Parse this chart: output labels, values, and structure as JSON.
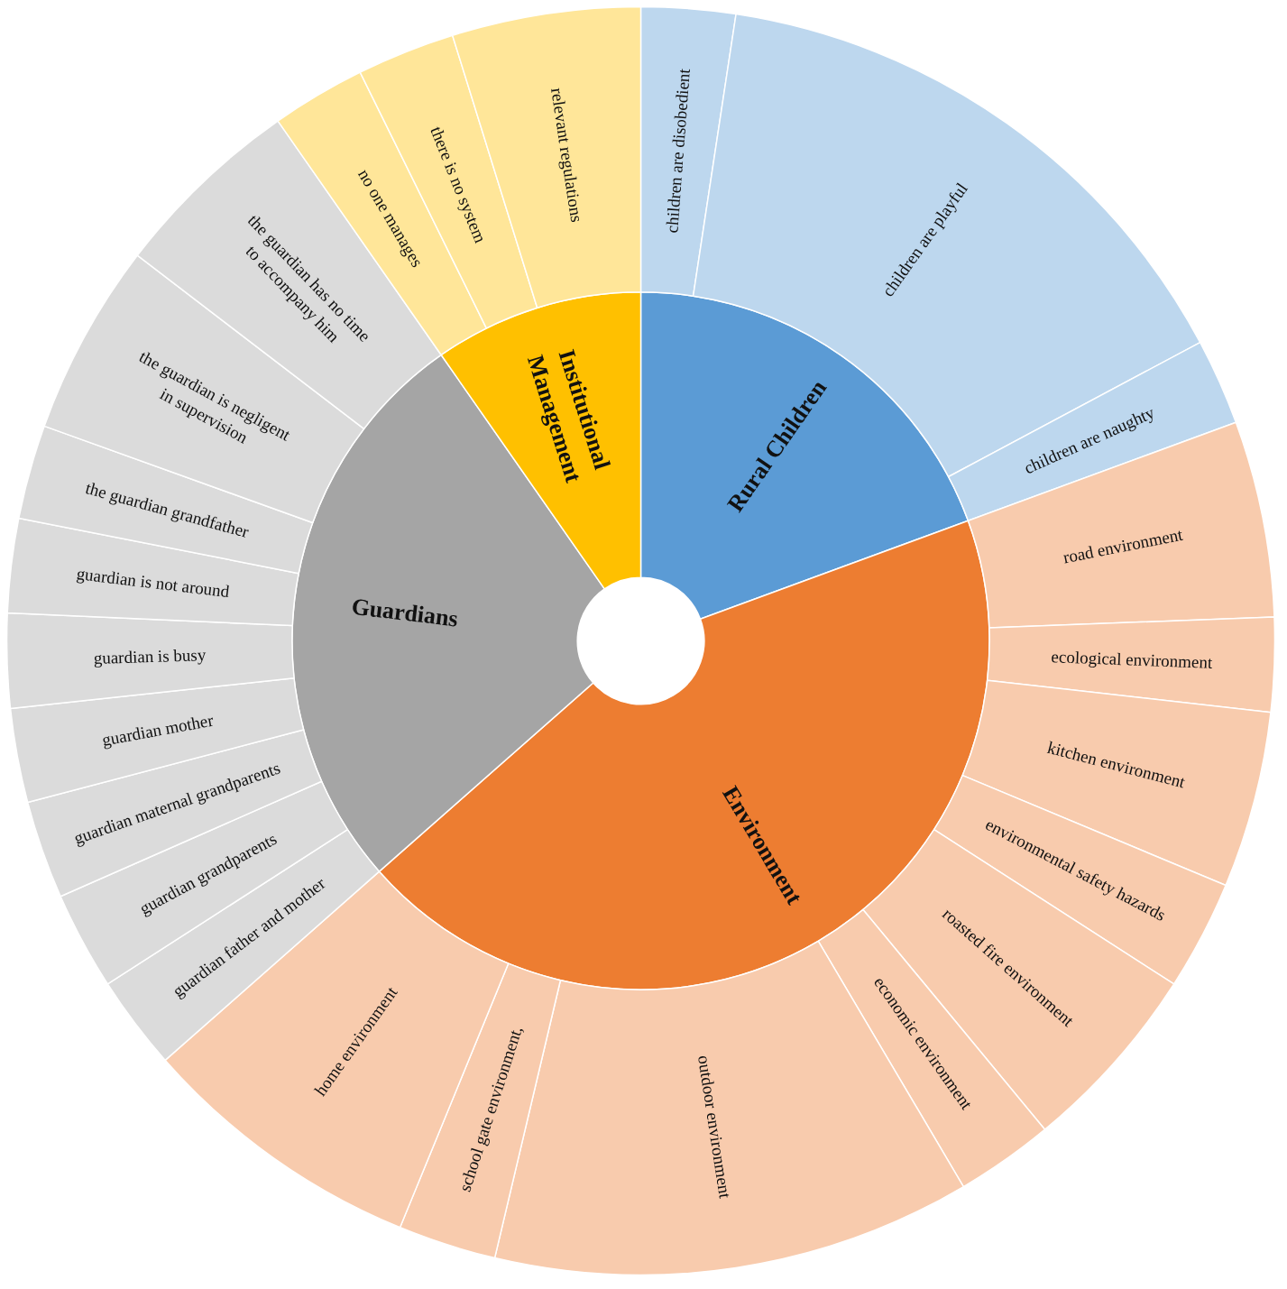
{
  "chart_data": {
    "type": "donut",
    "annotations": [
      "Rural Children",
      "Environment",
      "Guardians",
      "Institutional\nManagement",
      "children are disobedient",
      "children are playful",
      "children are naughty",
      "road environment",
      "ecological environment",
      "kitchen environment",
      "environmental safety hazards",
      "roasted fire environment",
      "economic environment",
      "outdoor environment",
      "school gate environment,",
      "home environment",
      "guardian father and mother",
      "guardian grandparents",
      "guardian maternal grandparents",
      "guardian mother",
      "guardian is busy",
      "guardian is not around",
      "the guardian grandfather",
      "the guardian is negligent\nin supervision",
      "the guardian has no time\nto accompany him",
      "no one manages",
      "there is no system",
      "relevant regulations"
    ],
    "series": [
      {
        "values": [
          19.4,
          44.1,
          26.8,
          9.7
        ],
        "colors": [
          "#5b9bd5",
          "#ed7d31",
          "#a5a5a5",
          "#ffc000"
        ]
      },
      {
        "values": [
          2.4,
          14.8,
          2.2,
          5.0,
          2.4,
          4.5,
          2.8,
          4.9,
          2.5,
          12.2,
          2.5,
          7.3,
          2.4,
          2.5,
          2.5,
          2.4,
          2.4,
          2.4,
          2.4,
          4.9,
          4.9,
          2.4,
          2.5,
          4.8
        ],
        "colors": [
          "#bdd7ee",
          "#bdd7ee",
          "#bdd7ee",
          "#f8cbad",
          "#f8cbad",
          "#f8cbad",
          "#f8cbad",
          "#f8cbad",
          "#f8cbad",
          "#f8cbad",
          "#f8cbad",
          "#f8cbad",
          "#dbdbdb",
          "#dbdbdb",
          "#dbdbdb",
          "#dbdbdb",
          "#dbdbdb",
          "#dbdbdb",
          "#dbdbdb",
          "#dbdbdb",
          "#dbdbdb",
          "#ffe699",
          "#ffe699",
          "#ffe699"
        ]
      }
    ]
  }
}
